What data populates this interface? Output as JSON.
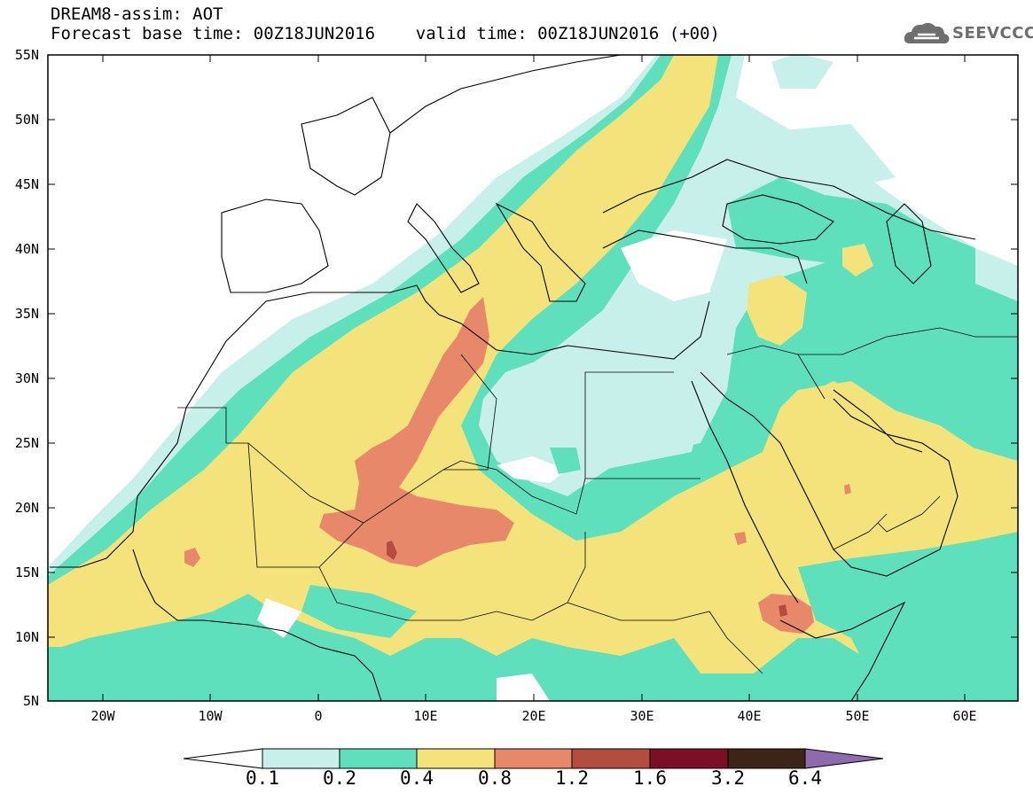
{
  "header": {
    "title": "DREAM8-assim: AOT",
    "subtitle": "Forecast base time: 00Z18JUN2016    valid time: 00Z18JUN2016 (+00)"
  },
  "logo": {
    "text": "SEEVCCC",
    "icon": "cloud-icon"
  },
  "map": {
    "latitude_labels": [
      "55N",
      "50N",
      "45N",
      "40N",
      "35N",
      "30N",
      "25N",
      "20N",
      "15N",
      "10N",
      "5N"
    ],
    "longitude_labels": [
      "20W",
      "10W",
      "0",
      "10E",
      "20E",
      "30E",
      "40E",
      "50E",
      "60E"
    ],
    "lat_range": [
      5,
      55
    ],
    "lon_range": [
      -25,
      65
    ]
  },
  "legend": {
    "labels": [
      "0.1",
      "0.2",
      "0.4",
      "0.8",
      "1.2",
      "1.6",
      "3.2",
      "6.4"
    ],
    "colors": [
      "#ffffff",
      "#c8f0ea",
      "#5ee0bc",
      "#f4e37a",
      "#e8886a",
      "#b34d40",
      "#7a0f25",
      "#3d2418",
      "#8f6aad"
    ]
  }
}
